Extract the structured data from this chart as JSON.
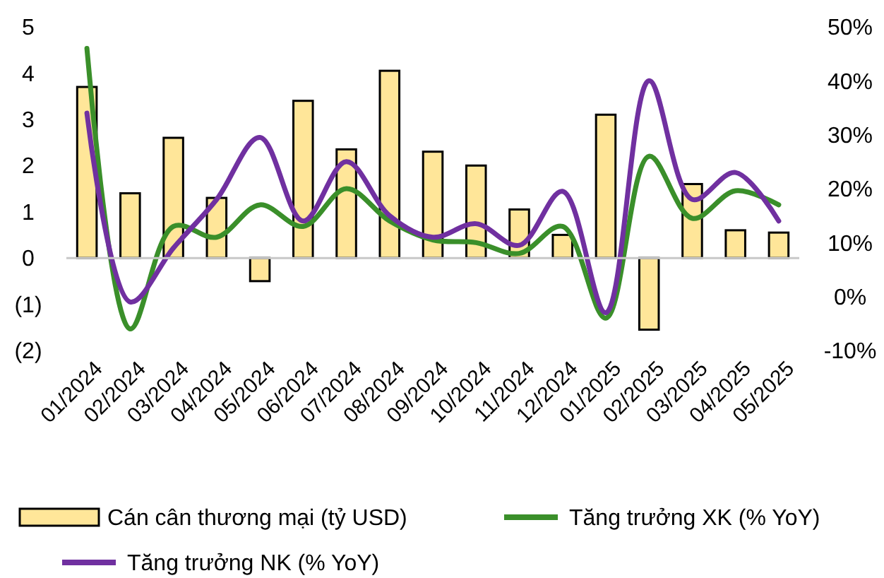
{
  "chart_data": {
    "type": "bar",
    "categories": [
      "01/2024",
      "02/2024",
      "03/2024",
      "04/2024",
      "05/2024",
      "06/2024",
      "07/2024",
      "08/2024",
      "09/2024",
      "10/2024",
      "11/2024",
      "12/2024",
      "01/2025",
      "02/2025",
      "03/2025",
      "04/2025",
      "05/2025"
    ],
    "series": [
      {
        "name": "Cán cân thương mại (tỷ USD)",
        "color": "#ffe699",
        "values": [
          3.7,
          1.4,
          2.6,
          1.3,
          -0.5,
          3.4,
          2.35,
          4.05,
          2.3,
          2.0,
          1.05,
          0.5,
          3.1,
          -1.55,
          1.6,
          0.6,
          0.55
        ]
      },
      {
        "name": "Tăng trưởng XK (% YoY)",
        "type": "line",
        "axis": "y2",
        "color": "#3a8f2a",
        "values": [
          46,
          -6,
          13,
          11,
          17,
          13,
          20,
          14,
          10.5,
          10,
          8,
          13,
          -4,
          26,
          14.5,
          19.6,
          17
        ]
      },
      {
        "name": "Tăng trưởng NK (% YoY)",
        "type": "line",
        "axis": "y2",
        "color": "#7030a0",
        "values": [
          34,
          -1,
          9,
          18,
          29.5,
          14,
          25,
          15,
          11,
          13.5,
          9.5,
          19.5,
          -3,
          40,
          18,
          23,
          14
        ]
      }
    ],
    "ylim": [
      -2,
      5
    ],
    "yticks": [
      5,
      4,
      3,
      2,
      1,
      0,
      {
        "value": -1,
        "label": "(1)"
      },
      {
        "value": -2,
        "label": "(2)"
      }
    ],
    "y2lim": [
      -10,
      50
    ],
    "y2ticks": [
      {
        "value": 50,
        "label": "50%"
      },
      {
        "value": 40,
        "label": "40%"
      },
      {
        "value": 30,
        "label": "30%"
      },
      {
        "value": 20,
        "label": "20%"
      },
      {
        "value": 10,
        "label": "10%"
      },
      {
        "value": 0,
        "label": "0%"
      },
      {
        "value": -10,
        "label": "-10%"
      }
    ],
    "legend": "bottom",
    "line_style": "solid",
    "marker": "none"
  }
}
